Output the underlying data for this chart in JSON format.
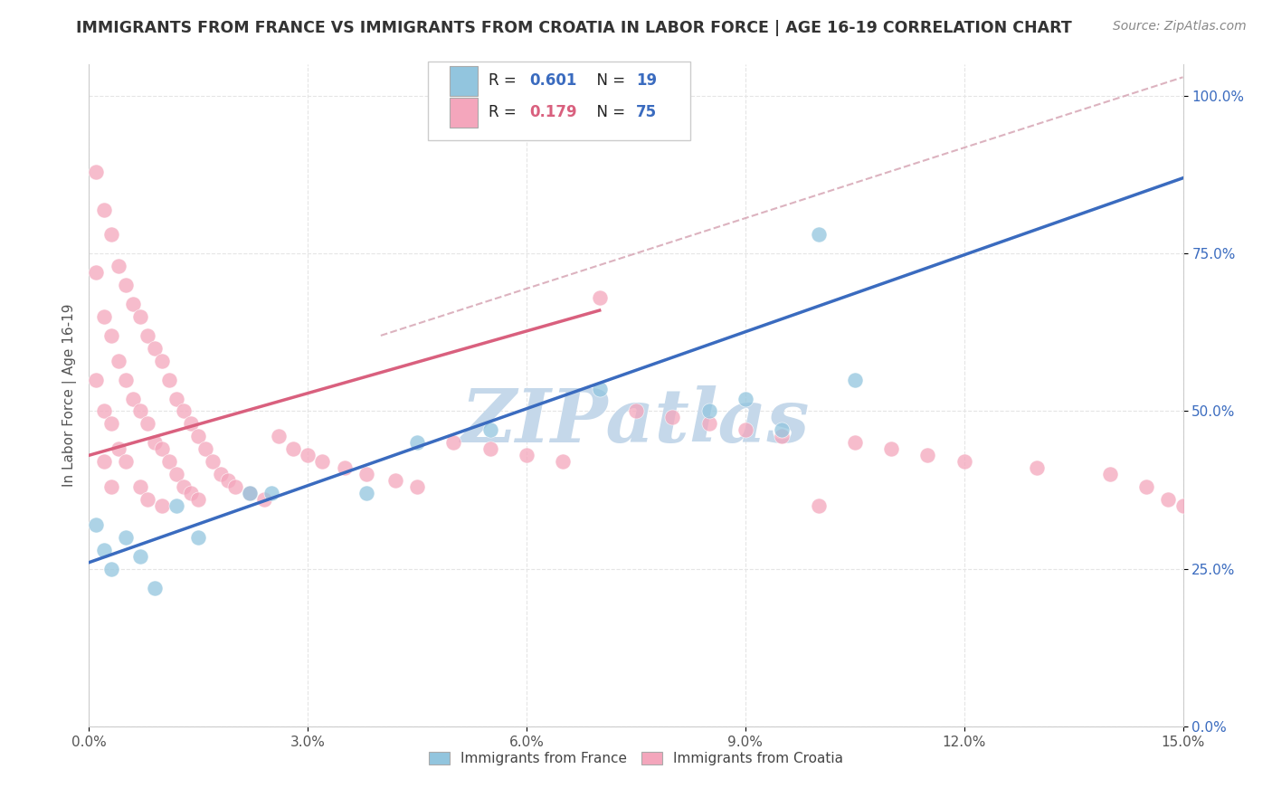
{
  "title": "IMMIGRANTS FROM FRANCE VS IMMIGRANTS FROM CROATIA IN LABOR FORCE | AGE 16-19 CORRELATION CHART",
  "source": "Source: ZipAtlas.com",
  "ylabel": "In Labor Force | Age 16-19",
  "xlim": [
    0.0,
    0.15
  ],
  "ylim": [
    0.0,
    1.05
  ],
  "x_ticks": [
    0.0,
    0.03,
    0.06,
    0.09,
    0.12,
    0.15
  ],
  "x_tick_labels": [
    "0.0%",
    "3.0%",
    "6.0%",
    "9.0%",
    "12.0%",
    "15.0%"
  ],
  "y_ticks": [
    0.0,
    0.25,
    0.5,
    0.75,
    1.0
  ],
  "y_tick_labels": [
    "0.0%",
    "25.0%",
    "50.0%",
    "75.0%",
    "100.0%"
  ],
  "france_color": "#92c5de",
  "croatia_color": "#f4a6bc",
  "france_line_color": "#3a6bbf",
  "croatia_line_color": "#d9607e",
  "dashed_line_color": "#d4a0b0",
  "france_R": 0.601,
  "france_N": 19,
  "croatia_R": 0.179,
  "croatia_N": 75,
  "legend_value_color": "#3a6bbf",
  "legend_croatia_value_color": "#d9607e",
  "watermark": "ZIPatlas",
  "watermark_color": "#c5d8ea",
  "background_color": "#ffffff",
  "grid_color": "#e5e5e5",
  "france_x": [
    0.001,
    0.002,
    0.003,
    0.005,
    0.007,
    0.009,
    0.012,
    0.015,
    0.022,
    0.025,
    0.038,
    0.045,
    0.055,
    0.07,
    0.085,
    0.09,
    0.095,
    0.1,
    0.105
  ],
  "france_y": [
    0.32,
    0.28,
    0.25,
    0.3,
    0.27,
    0.22,
    0.35,
    0.3,
    0.37,
    0.37,
    0.37,
    0.45,
    0.47,
    0.535,
    0.5,
    0.52,
    0.47,
    0.78,
    0.55
  ],
  "croatia_x": [
    0.001,
    0.001,
    0.001,
    0.002,
    0.002,
    0.002,
    0.002,
    0.003,
    0.003,
    0.003,
    0.003,
    0.004,
    0.004,
    0.004,
    0.005,
    0.005,
    0.005,
    0.006,
    0.006,
    0.007,
    0.007,
    0.007,
    0.008,
    0.008,
    0.008,
    0.009,
    0.009,
    0.01,
    0.01,
    0.01,
    0.011,
    0.011,
    0.012,
    0.012,
    0.013,
    0.013,
    0.014,
    0.014,
    0.015,
    0.015,
    0.016,
    0.017,
    0.018,
    0.019,
    0.02,
    0.022,
    0.024,
    0.026,
    0.028,
    0.03,
    0.032,
    0.035,
    0.038,
    0.042,
    0.045,
    0.05,
    0.055,
    0.06,
    0.065,
    0.07,
    0.075,
    0.08,
    0.085,
    0.09,
    0.095,
    0.1,
    0.105,
    0.11,
    0.115,
    0.12,
    0.13,
    0.14,
    0.145,
    0.148,
    0.15
  ],
  "croatia_y": [
    0.88,
    0.72,
    0.55,
    0.82,
    0.65,
    0.5,
    0.42,
    0.78,
    0.62,
    0.48,
    0.38,
    0.73,
    0.58,
    0.44,
    0.7,
    0.55,
    0.42,
    0.67,
    0.52,
    0.65,
    0.5,
    0.38,
    0.62,
    0.48,
    0.36,
    0.6,
    0.45,
    0.58,
    0.44,
    0.35,
    0.55,
    0.42,
    0.52,
    0.4,
    0.5,
    0.38,
    0.48,
    0.37,
    0.46,
    0.36,
    0.44,
    0.42,
    0.4,
    0.39,
    0.38,
    0.37,
    0.36,
    0.46,
    0.44,
    0.43,
    0.42,
    0.41,
    0.4,
    0.39,
    0.38,
    0.45,
    0.44,
    0.43,
    0.42,
    0.68,
    0.5,
    0.49,
    0.48,
    0.47,
    0.46,
    0.35,
    0.45,
    0.44,
    0.43,
    0.42,
    0.41,
    0.4,
    0.38,
    0.36,
    0.35
  ],
  "france_line_x": [
    0.0,
    0.15
  ],
  "france_line_y": [
    0.26,
    0.87
  ],
  "croatia_line_x": [
    0.0,
    0.07
  ],
  "croatia_line_y": [
    0.43,
    0.66
  ],
  "dashed_line_x": [
    0.04,
    0.15
  ],
  "dashed_line_y": [
    0.62,
    1.03
  ]
}
